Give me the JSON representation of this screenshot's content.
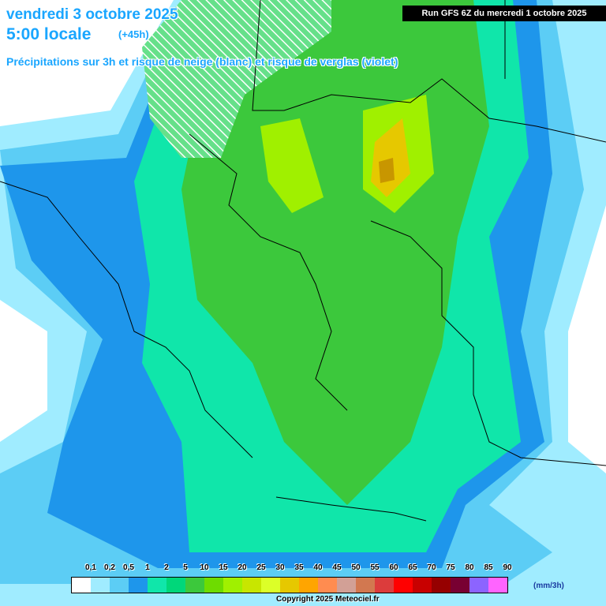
{
  "header": {
    "date": "vendredi 3 octobre 2025",
    "local_time": "5:00 locale",
    "lead_time": "(+45h)",
    "subtitle": "Précipitations sur 3h et risque de neige (blanc) et risque de verglas (violet)",
    "run": "Run GFS 6Z du mercredi 1 octobre 2025"
  },
  "legend": {
    "labels": [
      "0,1",
      "0,2",
      "0,5",
      "1",
      "2",
      "5",
      "10",
      "15",
      "20",
      "25",
      "30",
      "35",
      "40",
      "45",
      "50",
      "55",
      "60",
      "65",
      "70",
      "75",
      "80",
      "85",
      "90"
    ],
    "colors": [
      "#ffffff",
      "#a0ecff",
      "#5ccdf5",
      "#1e96eb",
      "#10e6aa",
      "#00d77a",
      "#3cc83c",
      "#6edc00",
      "#a0f000",
      "#c8e600",
      "#dcff28",
      "#e6c800",
      "#ffa500",
      "#ff8c50",
      "#d2a096",
      "#d27850",
      "#dc3c3c",
      "#ff0000",
      "#c80000",
      "#960000",
      "#780032",
      "#8c64ff",
      "#ff64ff"
    ],
    "unit": "(mm/3h)"
  },
  "footer": {
    "copyright": "Copyright 2025 Meteociel.fr"
  }
}
